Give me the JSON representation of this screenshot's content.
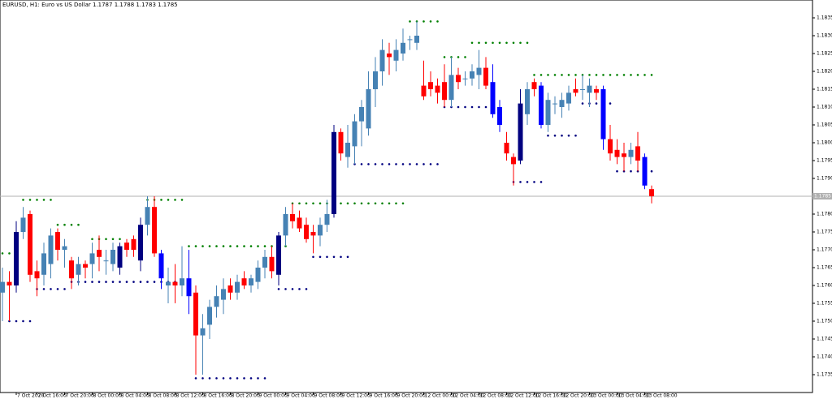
{
  "chart_data": {
    "type": "candlestick",
    "title": "EURUSD, H1:  Euro vs US Dollar  1.1787 1.1788 1.1783 1.1785",
    "categories": [
      null,
      null,
      "7 Oct 2020",
      null,
      null,
      "7 Oct 16:00",
      null,
      null,
      null,
      "7 Oct 20:00",
      null,
      null,
      null,
      "8 Oct 00:00",
      null,
      null,
      null,
      "8 Oct 04:00",
      null,
      null,
      null,
      "8 Oct 08:00",
      null,
      null,
      null,
      "8 Oct 12:00",
      null,
      null,
      null,
      "8 Oct 16:00",
      null,
      null,
      null,
      "8 Oct 20:00",
      null,
      null,
      null,
      "9 Oct 00:00",
      null,
      null,
      null,
      "9 Oct 04:00",
      null,
      null,
      null,
      "9 Oct 08:00",
      null,
      null,
      null,
      "9 Oct 12:00",
      null,
      null,
      null,
      "9 Oct 16:00",
      null,
      null,
      null,
      "9 Oct 20:00",
      null,
      null,
      null,
      "12 Oct 00:00",
      null,
      null,
      null,
      "12 Oct 04:00",
      null,
      null,
      null,
      "12 Oct 08:00",
      null,
      null,
      null,
      "12 Oct 12:00",
      null,
      null,
      null,
      "12 Oct 16:00",
      null,
      null,
      null,
      "12 Oct 20:00",
      null,
      null,
      null,
      "13 Oct 00:00",
      null,
      null,
      null,
      "13 Oct 04:00",
      null,
      null,
      null,
      "13 Oct 08:00",
      null
    ],
    "open": [
      1.1758,
      1.1761,
      1.176,
      1.1775,
      1.178,
      1.1764,
      1.1763,
      1.1766,
      1.1775,
      1.177,
      1.1767,
      1.1763,
      1.1766,
      1.1766,
      1.177,
      1.1767,
      1.1766,
      1.1765,
      1.1772,
      1.1773,
      1.1767,
      1.1777,
      1.1782,
      1.1769,
      1.176,
      1.1761,
      1.176,
      1.1762,
      1.1758,
      1.1746,
      1.1749,
      1.1754,
      1.1756,
      1.176,
      1.1758,
      1.1762,
      1.176,
      1.1761,
      1.1765,
      1.1768,
      1.1763,
      1.1774,
      1.178,
      1.1779,
      1.1777,
      1.1775,
      1.1774,
      1.1777,
      1.178,
      1.1803,
      1.1796,
      1.1799,
      1.1806,
      1.1804,
      1.1815,
      1.182,
      1.1825,
      1.1823,
      1.1825,
      1.1829,
      1.1828,
      1.1816,
      1.1817,
      1.1816,
      1.1817,
      1.1812,
      1.1819,
      1.1818,
      1.1818,
      1.1819,
      1.1821,
      1.1817,
      1.181,
      1.18,
      1.1796,
      1.1795,
      1.1808,
      1.1817,
      1.1816,
      1.1805,
      1.1811,
      1.181,
      1.1811,
      1.1815,
      1.1815,
      1.1814,
      1.1815,
      1.1815,
      1.1801,
      1.1798,
      1.1797,
      1.1796,
      1.1799,
      1.1796,
      1.1787
    ],
    "high": [
      1.1765,
      1.1764,
      1.1778,
      1.1782,
      1.1781,
      1.1767,
      1.1772,
      1.1776,
      1.1776,
      1.1773,
      1.1768,
      1.1768,
      1.1767,
      1.1772,
      1.1774,
      1.177,
      1.1772,
      1.1772,
      1.1773,
      1.1774,
      1.1779,
      1.1785,
      1.1785,
      1.177,
      1.1765,
      1.1766,
      1.1771,
      1.177,
      1.176,
      1.1752,
      1.1756,
      1.176,
      1.1762,
      1.1762,
      1.1763,
      1.1764,
      1.1763,
      1.1767,
      1.177,
      1.1771,
      1.1775,
      1.1782,
      1.1783,
      1.1781,
      1.1779,
      1.1777,
      1.1779,
      1.1784,
      1.1805,
      1.1804,
      1.1805,
      1.1808,
      1.1812,
      1.182,
      1.1824,
      1.1829,
      1.1828,
      1.1829,
      1.1832,
      1.183,
      1.1834,
      1.1823,
      1.182,
      1.1818,
      1.1822,
      1.1824,
      1.1821,
      1.182,
      1.1822,
      1.1826,
      1.1824,
      1.1822,
      1.1812,
      1.1803,
      1.1797,
      1.1815,
      1.1817,
      1.1818,
      1.1817,
      1.1814,
      1.1813,
      1.1814,
      1.1816,
      1.1818,
      1.1819,
      1.1818,
      1.1816,
      1.1816,
      1.1805,
      1.1801,
      1.18,
      1.18,
      1.1803,
      1.1797,
      1.1788
    ],
    "low": [
      1.175,
      1.175,
      1.1758,
      1.1773,
      1.1761,
      1.1757,
      1.176,
      1.1762,
      1.1767,
      1.1765,
      1.1759,
      1.176,
      1.1762,
      1.1762,
      1.1764,
      1.1763,
      1.1764,
      1.1763,
      1.1768,
      1.1768,
      1.1764,
      1.1774,
      1.1768,
      1.1759,
      1.1755,
      1.1755,
      1.1757,
      1.1752,
      1.1735,
      1.1735,
      1.1745,
      1.1751,
      1.1752,
      1.1756,
      1.1756,
      1.1759,
      1.1758,
      1.1759,
      1.1762,
      1.1762,
      1.176,
      1.1771,
      1.1776,
      1.1775,
      1.1772,
      1.1769,
      1.1771,
      1.1775,
      1.1779,
      1.1795,
      1.1793,
      1.1794,
      1.1799,
      1.1802,
      1.181,
      1.1816,
      1.1819,
      1.182,
      1.1823,
      1.1826,
      1.1826,
      1.1812,
      1.1813,
      1.1811,
      1.181,
      1.181,
      1.1815,
      1.1816,
      1.1816,
      1.1815,
      1.1815,
      1.1807,
      1.1803,
      1.1795,
      1.1788,
      1.1794,
      1.1805,
      1.1813,
      1.1804,
      1.1803,
      1.1808,
      1.1807,
      1.1809,
      1.1813,
      1.1812,
      1.181,
      1.1812,
      1.1798,
      1.1795,
      1.1794,
      1.1792,
      1.1794,
      1.1792,
      1.1787,
      1.1783
    ],
    "close": [
      1.1761,
      1.176,
      1.1775,
      1.1779,
      1.1763,
      1.1762,
      1.1769,
      1.1774,
      1.177,
      1.1771,
      1.1762,
      1.1766,
      1.1765,
      1.1769,
      1.1768,
      1.1767,
      1.177,
      1.1771,
      1.177,
      1.177,
      1.1777,
      1.1782,
      1.1769,
      1.1762,
      1.1761,
      1.176,
      1.1762,
      1.1757,
      1.1746,
      1.1748,
      1.1754,
      1.1757,
      1.1759,
      1.1758,
      1.1761,
      1.176,
      1.1762,
      1.1765,
      1.1768,
      1.1764,
      1.1774,
      1.178,
      1.1778,
      1.1776,
      1.1773,
      1.1774,
      1.1777,
      1.178,
      1.1803,
      1.1797,
      1.18,
      1.1806,
      1.181,
      1.1815,
      1.182,
      1.1826,
      1.1824,
      1.1826,
      1.1828,
      1.1829,
      1.183,
      1.1813,
      1.1815,
      1.1814,
      1.1812,
      1.1819,
      1.1817,
      1.1818,
      1.182,
      1.1821,
      1.1816,
      1.1808,
      1.1805,
      1.1797,
      1.1794,
      1.1811,
      1.1815,
      1.1815,
      1.1805,
      1.1812,
      1.1811,
      1.1812,
      1.1814,
      1.1814,
      1.1815,
      1.1816,
      1.1814,
      1.1801,
      1.1797,
      1.1796,
      1.1796,
      1.1798,
      1.1795,
      1.1788,
      1.1785
    ],
    "colors": [
      "#4682b4",
      "#ff0000",
      "#000080",
      "#4682b4",
      "#ff0000",
      "#ff0000",
      "#4682b4",
      "#4682b4",
      "#ff0000",
      "#4682b4",
      "#ff0000",
      "#4682b4",
      "#ff0000",
      "#4682b4",
      "#ff0000",
      "#4682b4",
      "#4682b4",
      "#000080",
      "#ff0000",
      "#ff0000",
      "#000080",
      "#4682b4",
      "#ff0000",
      "#0000ff",
      "#4682b4",
      "#ff0000",
      "#4682b4",
      "#0000ff",
      "#ff0000",
      "#4682b4",
      "#4682b4",
      "#4682b4",
      "#4682b4",
      "#ff0000",
      "#4682b4",
      "#ff0000",
      "#4682b4",
      "#4682b4",
      "#4682b4",
      "#ff0000",
      "#000080",
      "#4682b4",
      "#ff0000",
      "#ff0000",
      "#ff0000",
      "#ff0000",
      "#4682b4",
      "#4682b4",
      "#000080",
      "#ff0000",
      "#4682b4",
      "#4682b4",
      "#4682b4",
      "#4682b4",
      "#4682b4",
      "#4682b4",
      "#ff0000",
      "#4682b4",
      "#4682b4",
      "#4682b4",
      "#4682b4",
      "#ff0000",
      "#ff0000",
      "#ff0000",
      "#ff0000",
      "#4682b4",
      "#ff0000",
      "#4682b4",
      "#4682b4",
      "#4682b4",
      "#ff0000",
      "#0000ff",
      "#0000ff",
      "#ff0000",
      "#ff0000",
      "#000080",
      "#4682b4",
      "#ff0000",
      "#0000ff",
      "#4682b4",
      "#4682b4",
      "#4682b4",
      "#4682b4",
      "#ff0000",
      "#4682b4",
      "#4682b4",
      "#ff0000",
      "#0000ff",
      "#ff0000",
      "#ff0000",
      "#ff0000",
      "#4682b4",
      "#ff0000",
      "#0000ff",
      "#ff0000"
    ],
    "up_levels": [
      1.1769,
      1.1769,
      null,
      1.1784,
      1.1784,
      1.1784,
      1.1784,
      1.1784,
      1.1777,
      1.1777,
      1.1777,
      1.1777,
      null,
      1.1773,
      1.1773,
      1.1773,
      1.1773,
      1.1773,
      null,
      null,
      null,
      1.1784,
      1.1784,
      1.1784,
      1.1784,
      1.1784,
      1.1784,
      1.1771,
      1.1771,
      1.1771,
      1.1771,
      1.1771,
      1.1771,
      1.1771,
      1.1771,
      1.1771,
      1.1771,
      1.1771,
      1.1771,
      1.1771,
      null,
      1.1771,
      1.1783,
      1.1783,
      1.1783,
      1.1783,
      1.1783,
      1.1783,
      1.1783,
      1.1783,
      1.1783,
      1.1783,
      1.1783,
      1.1783,
      1.1783,
      1.1783,
      1.1783,
      1.1783,
      1.1783,
      1.1834,
      1.1834,
      1.1834,
      1.1834,
      1.1834,
      1.1824,
      1.1824,
      1.1824,
      1.1824,
      1.1828,
      1.1828,
      1.1828,
      1.1828,
      1.1828,
      1.1828,
      1.1828,
      1.1828,
      1.1828,
      1.1819,
      1.1819,
      1.1819,
      1.1819,
      1.1819,
      1.1819,
      1.1819,
      1.1819,
      1.1819,
      1.1819,
      1.1819,
      1.1819,
      1.1819,
      1.1819,
      1.1819,
      1.1819,
      1.1819,
      1.1819
    ],
    "down_levels": [
      null,
      1.175,
      1.175,
      1.175,
      1.175,
      1.1759,
      1.1759,
      1.1759,
      1.1759,
      1.1759,
      1.1761,
      1.1761,
      1.1761,
      1.1761,
      1.1761,
      1.1761,
      1.1761,
      1.1761,
      1.1761,
      1.1761,
      1.1761,
      1.1761,
      1.1761,
      1.1761,
      1.1761,
      1.1761,
      1.1761,
      null,
      1.1734,
      1.1734,
      1.1734,
      1.1734,
      1.1734,
      1.1734,
      1.1734,
      1.1734,
      1.1734,
      1.1734,
      1.1734,
      null,
      1.1759,
      1.1759,
      1.1759,
      1.1759,
      1.1759,
      1.1768,
      1.1768,
      1.1768,
      1.1768,
      1.1768,
      1.1768,
      1.1794,
      1.1794,
      1.1794,
      1.1794,
      1.1794,
      1.1794,
      1.1794,
      1.1794,
      1.1794,
      1.1794,
      1.1794,
      1.1794,
      1.1794,
      1.181,
      1.181,
      1.181,
      1.181,
      1.181,
      1.181,
      1.181,
      1.181,
      null,
      null,
      1.1789,
      1.1789,
      1.1789,
      1.1789,
      1.1789,
      1.1802,
      1.1802,
      1.1802,
      1.1802,
      1.1802,
      1.1811,
      1.1811,
      1.1811,
      1.1811,
      1.1811,
      1.1792,
      1.1792,
      1.1792,
      1.1792,
      1.1792,
      1.1792
    ],
    "up_level_color": "#008000",
    "down_level_color": "#000080",
    "last_price": 1.1785,
    "last_price_color": "#b0b0b0",
    "ylim": [
      1.173,
      1.184
    ],
    "yticks": [
      1.1735,
      {
        "value": 1.174,
        "label": "1.1740"
      },
      1.1745,
      {
        "value": 1.175,
        "label": "1.1750"
      },
      1.1755,
      {
        "value": 1.176,
        "label": "1.1760"
      },
      1.1765,
      {
        "value": 1.177,
        "label": "1.1770"
      },
      1.1775,
      {
        "value": 1.178,
        "label": "1.1780"
      },
      1.1785,
      {
        "value": 1.179,
        "label": "1.1790"
      },
      1.1795,
      {
        "value": 1.18,
        "label": "1.1800"
      },
      1.1805,
      {
        "value": 1.181,
        "label": "1.1810"
      },
      1.1815,
      {
        "value": 1.182,
        "label": "1.1820"
      },
      1.1825,
      {
        "value": 1.183,
        "label": "1.1830"
      },
      1.1835
    ],
    "grid": false
  }
}
